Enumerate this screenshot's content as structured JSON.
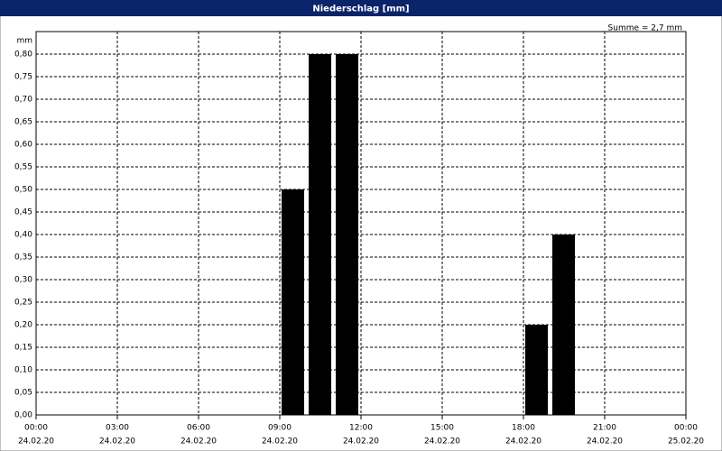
{
  "chart_data": {
    "type": "bar",
    "title": "Niederschlag [mm]",
    "annotation": "Summe = 2,7 mm",
    "ylabel": "mm",
    "x": [
      9,
      10,
      11,
      18,
      19
    ],
    "values": [
      0.5,
      0.8,
      0.8,
      0.2,
      0.4
    ],
    "color": "#000000",
    "xlim": [
      0,
      24
    ],
    "xticks": [
      {
        "value": 0,
        "label": "00:00",
        "date": "24.02.20"
      },
      {
        "value": 3,
        "label": "03:00",
        "date": "24.02.20"
      },
      {
        "value": 6,
        "label": "06:00",
        "date": "24.02.20"
      },
      {
        "value": 9,
        "label": "09:00",
        "date": "24.02.20"
      },
      {
        "value": 12,
        "label": "12:00",
        "date": "24.02.20"
      },
      {
        "value": 15,
        "label": "15:00",
        "date": "24.02.20"
      },
      {
        "value": 18,
        "label": "18:00",
        "date": "24.02.20"
      },
      {
        "value": 21,
        "label": "21:00",
        "date": "24.02.20"
      },
      {
        "value": 24,
        "label": "00:00",
        "date": "25.02.20"
      }
    ],
    "ylim": [
      0,
      0.85
    ],
    "yticks": [
      {
        "value": 0,
        "label": "0,00"
      },
      {
        "value": 0.05,
        "label": "0,05"
      },
      {
        "value": 0.1,
        "label": "0,10"
      },
      {
        "value": 0.15,
        "label": "0,15"
      },
      {
        "value": 0.2,
        "label": "0,20"
      },
      {
        "value": 0.25,
        "label": "0,25"
      },
      {
        "value": 0.3,
        "label": "0,30"
      },
      {
        "value": 0.35,
        "label": "0,35"
      },
      {
        "value": 0.4,
        "label": "0,40"
      },
      {
        "value": 0.45,
        "label": "0,45"
      },
      {
        "value": 0.5,
        "label": "0,50"
      },
      {
        "value": 0.55,
        "label": "0,55"
      },
      {
        "value": 0.6,
        "label": "0,60"
      },
      {
        "value": 0.65,
        "label": "0,65"
      },
      {
        "value": 0.7,
        "label": "0,70"
      },
      {
        "value": 0.75,
        "label": "0,75"
      },
      {
        "value": 0.8,
        "label": "0,80"
      }
    ],
    "grid": true
  }
}
